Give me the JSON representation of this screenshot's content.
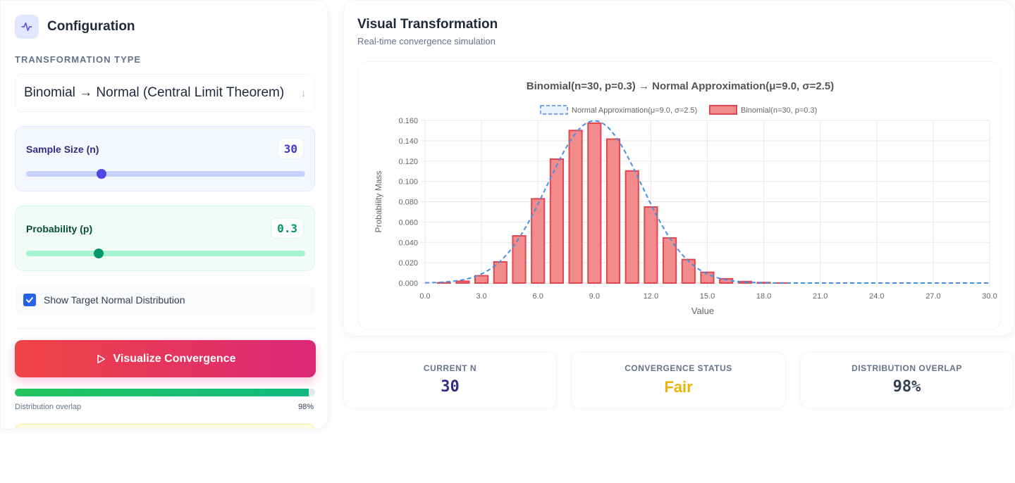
{
  "config": {
    "title": "Configuration",
    "icon": "activity-icon",
    "transformation_label": "TRANSFORMATION TYPE",
    "transformation_value": "Binomial → Normal (Central Limit Theorem)",
    "sample_size": {
      "label": "Sample Size (n)",
      "value": "30",
      "fraction": 0.27
    },
    "probability": {
      "label": "Probability (p)",
      "value": "0.3",
      "fraction": 0.26
    },
    "show_target_label": "Show Target Normal Distribution",
    "show_target_checked": true,
    "visualize_button": "Visualize Convergence",
    "overlap_label": "Distribution overlap",
    "overlap_value": "98%",
    "overlap_fraction": 0.98
  },
  "viz": {
    "title": "Visual Transformation",
    "subtitle": "Real-time convergence simulation"
  },
  "stats": {
    "current_n": {
      "label": "CURRENT N",
      "value": "30"
    },
    "convergence_status": {
      "label": "CONVERGENCE STATUS",
      "value": "Fair"
    },
    "distribution_overlap": {
      "label": "DISTRIBUTION OVERLAP",
      "value": "98%"
    }
  },
  "colors": {
    "bar_fill": "#f28b8b",
    "bar_stroke": "#e0484f",
    "normal_line": "#4a90e2",
    "grid": "#e5e7eb",
    "status_fair": "#eab308"
  },
  "chart_data": {
    "type": "bar",
    "title": "Binomial(n=30, p=0.3) → Normal Approximation(μ=9.0, σ=2.5)",
    "xlabel": "Value",
    "ylabel": "Probability Mass",
    "xlim": [
      0,
      30
    ],
    "ylim": [
      0,
      0.16
    ],
    "x_ticks": [
      "0.0",
      "3.0",
      "6.0",
      "9.0",
      "12.0",
      "15.0",
      "18.0",
      "21.0",
      "24.0",
      "27.0",
      "30.0"
    ],
    "y_ticks": [
      "0.000",
      "0.020",
      "0.040",
      "0.060",
      "0.080",
      "0.100",
      "0.120",
      "0.140",
      "0.160"
    ],
    "grid": true,
    "legend_position": "top",
    "series": [
      {
        "name": "Normal Approximation(μ=9.0, σ=2.5)",
        "type": "line",
        "style": "dashed",
        "mean": 9.0,
        "sd": 2.5
      },
      {
        "name": "Binomial(n=30, p=0.3)",
        "type": "bar",
        "x": [
          0,
          1,
          2,
          3,
          4,
          5,
          6,
          7,
          8,
          9,
          10,
          11,
          12,
          13,
          14,
          15,
          16,
          17,
          18,
          19,
          20,
          21,
          22,
          23,
          24,
          25,
          26,
          27,
          28,
          29,
          30
        ],
        "values": [
          0.0,
          0.0003,
          0.0018,
          0.0072,
          0.0208,
          0.0464,
          0.0829,
          0.1219,
          0.1501,
          0.1573,
          0.1416,
          0.1103,
          0.0748,
          0.0444,
          0.0231,
          0.0106,
          0.0042,
          0.0015,
          0.0005,
          0.0001,
          0.0,
          0.0,
          0.0,
          0.0,
          0.0,
          0.0,
          0.0,
          0.0,
          0.0,
          0.0,
          0.0
        ]
      }
    ]
  }
}
